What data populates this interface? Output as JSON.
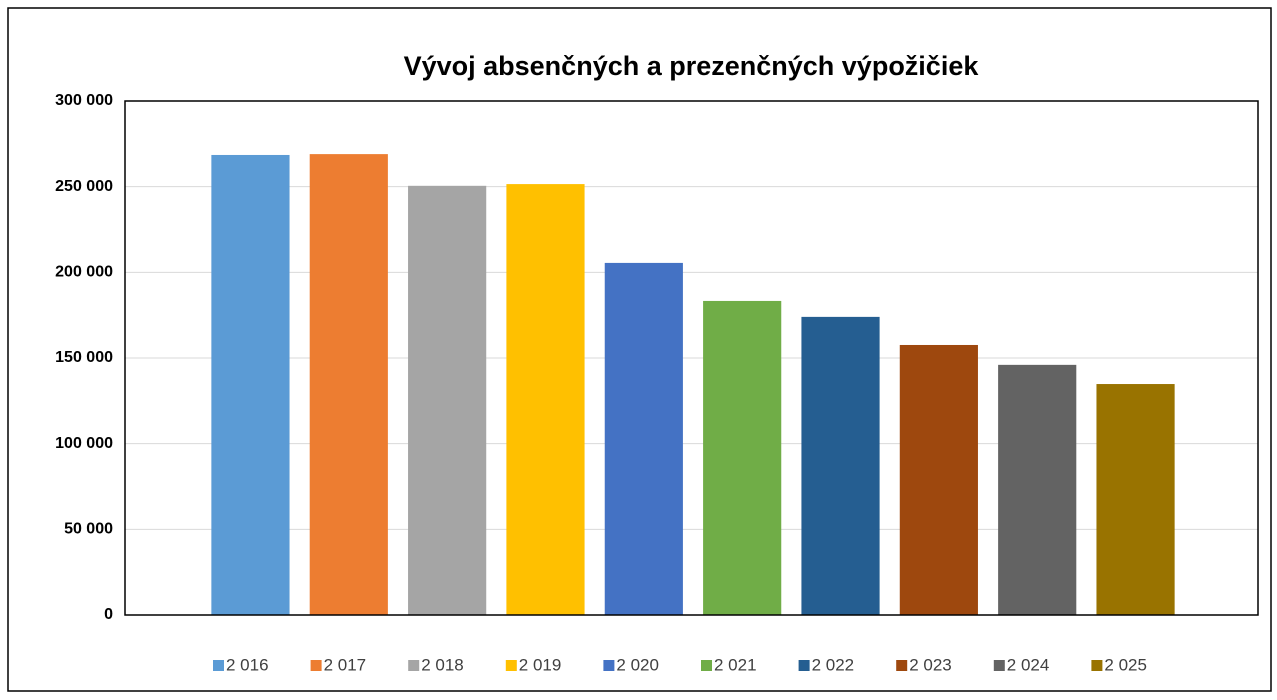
{
  "chart_data": {
    "type": "bar",
    "title": "Vývoj absenčných a prezenčných výpožičiek",
    "categories": [
      null
    ],
    "series": [
      {
        "name": "2 016",
        "color": "#5b9bd5",
        "values": [
          268500
        ]
      },
      {
        "name": "2 017",
        "color": "#ed7d31",
        "values": [
          269000
        ]
      },
      {
        "name": "2 018",
        "color": "#a5a5a5",
        "values": [
          250500
        ]
      },
      {
        "name": "2 019",
        "color": "#ffc000",
        "values": [
          251500
        ]
      },
      {
        "name": "2 020",
        "color": "#4472c4",
        "values": [
          205500
        ]
      },
      {
        "name": "2 021",
        "color": "#70ad47",
        "values": [
          183300
        ]
      },
      {
        "name": "2 022",
        "color": "#255e91",
        "values": [
          174000
        ]
      },
      {
        "name": "2 023",
        "color": "#9e480e",
        "values": [
          157600
        ]
      },
      {
        "name": "2 024",
        "color": "#636363",
        "values": [
          146000
        ]
      },
      {
        "name": "2 025",
        "color": "#997300",
        "values": [
          134800
        ]
      }
    ],
    "ylim": [
      0,
      300000
    ],
    "yticks": [
      0,
      {
        "value": 50000,
        "label": "50 000"
      },
      {
        "value": 100000,
        "label": "100 000"
      },
      {
        "value": 150000,
        "label": "150 000"
      },
      {
        "value": 200000,
        "label": "200 000"
      },
      {
        "value": 250000,
        "label": "250 000"
      },
      {
        "value": 300000,
        "label": "300 000"
      }
    ],
    "grid": true,
    "legend": "bottom"
  }
}
